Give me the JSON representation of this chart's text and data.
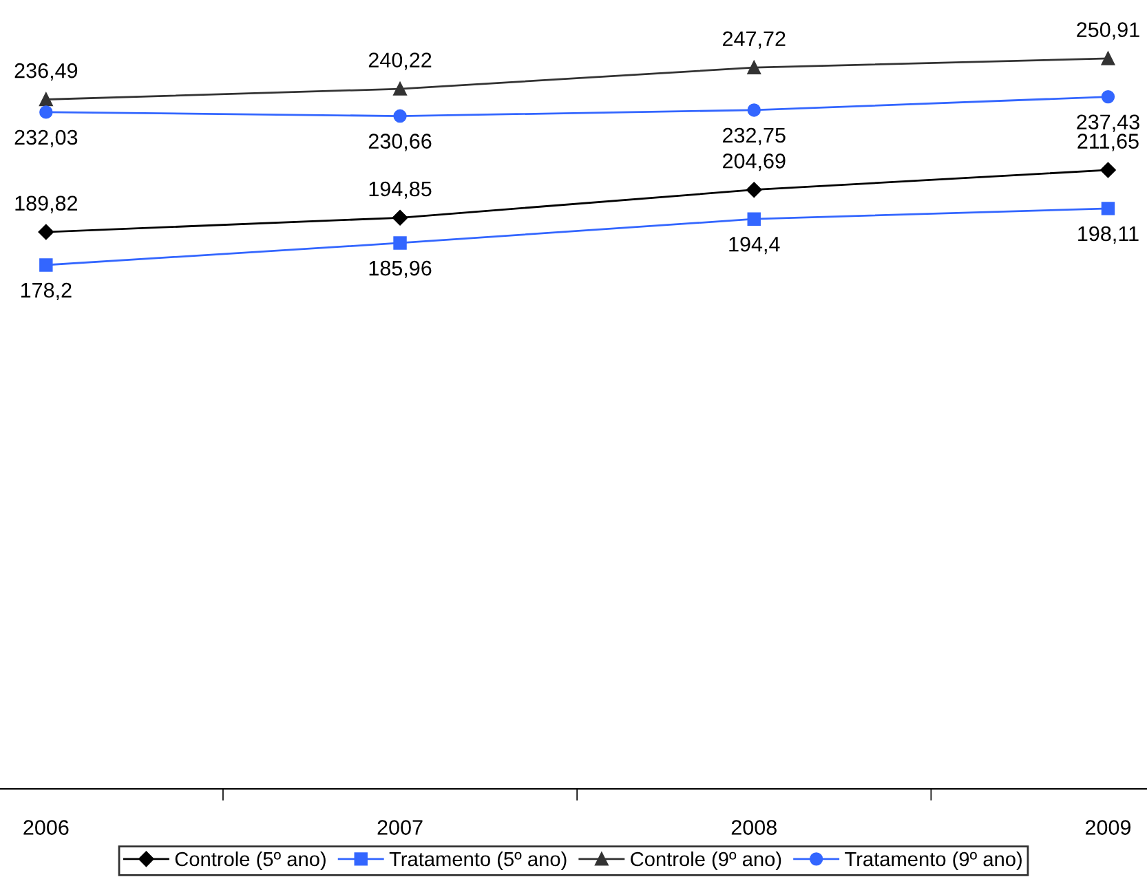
{
  "chart_data": {
    "type": "line",
    "categories": [
      "2006",
      "2007",
      "2008",
      "2009"
    ],
    "series": [
      {
        "name": "Controle (5º ano)",
        "color": "#000000",
        "marker": "diamond",
        "values": [
          189.82,
          194.85,
          204.69,
          211.65
        ],
        "value_labels": [
          "189,82",
          "194,85",
          "204,69",
          "211,65"
        ]
      },
      {
        "name": "Tratamento (5º ano)",
        "color": "#3366ff",
        "marker": "square",
        "values": [
          178.2,
          185.96,
          194.4,
          198.11
        ],
        "value_labels": [
          "178,2",
          "185,96",
          "194,4",
          "198,11"
        ]
      },
      {
        "name": "Controle (9º ano)",
        "color": "#333333",
        "marker": "triangle",
        "values": [
          236.49,
          240.22,
          247.72,
          250.91
        ],
        "value_labels": [
          "236,49",
          "240,22",
          "247,72",
          "250,91"
        ]
      },
      {
        "name": "Tratamento (9º ano)",
        "color": "#3366ff",
        "marker": "circle",
        "values": [
          232.03,
          230.66,
          232.75,
          237.43
        ],
        "value_labels": [
          "232,03",
          "230,66",
          "232,75",
          "237,43"
        ]
      }
    ],
    "tick_labels": "x",
    "legend": "bottom",
    "grid": false
  }
}
